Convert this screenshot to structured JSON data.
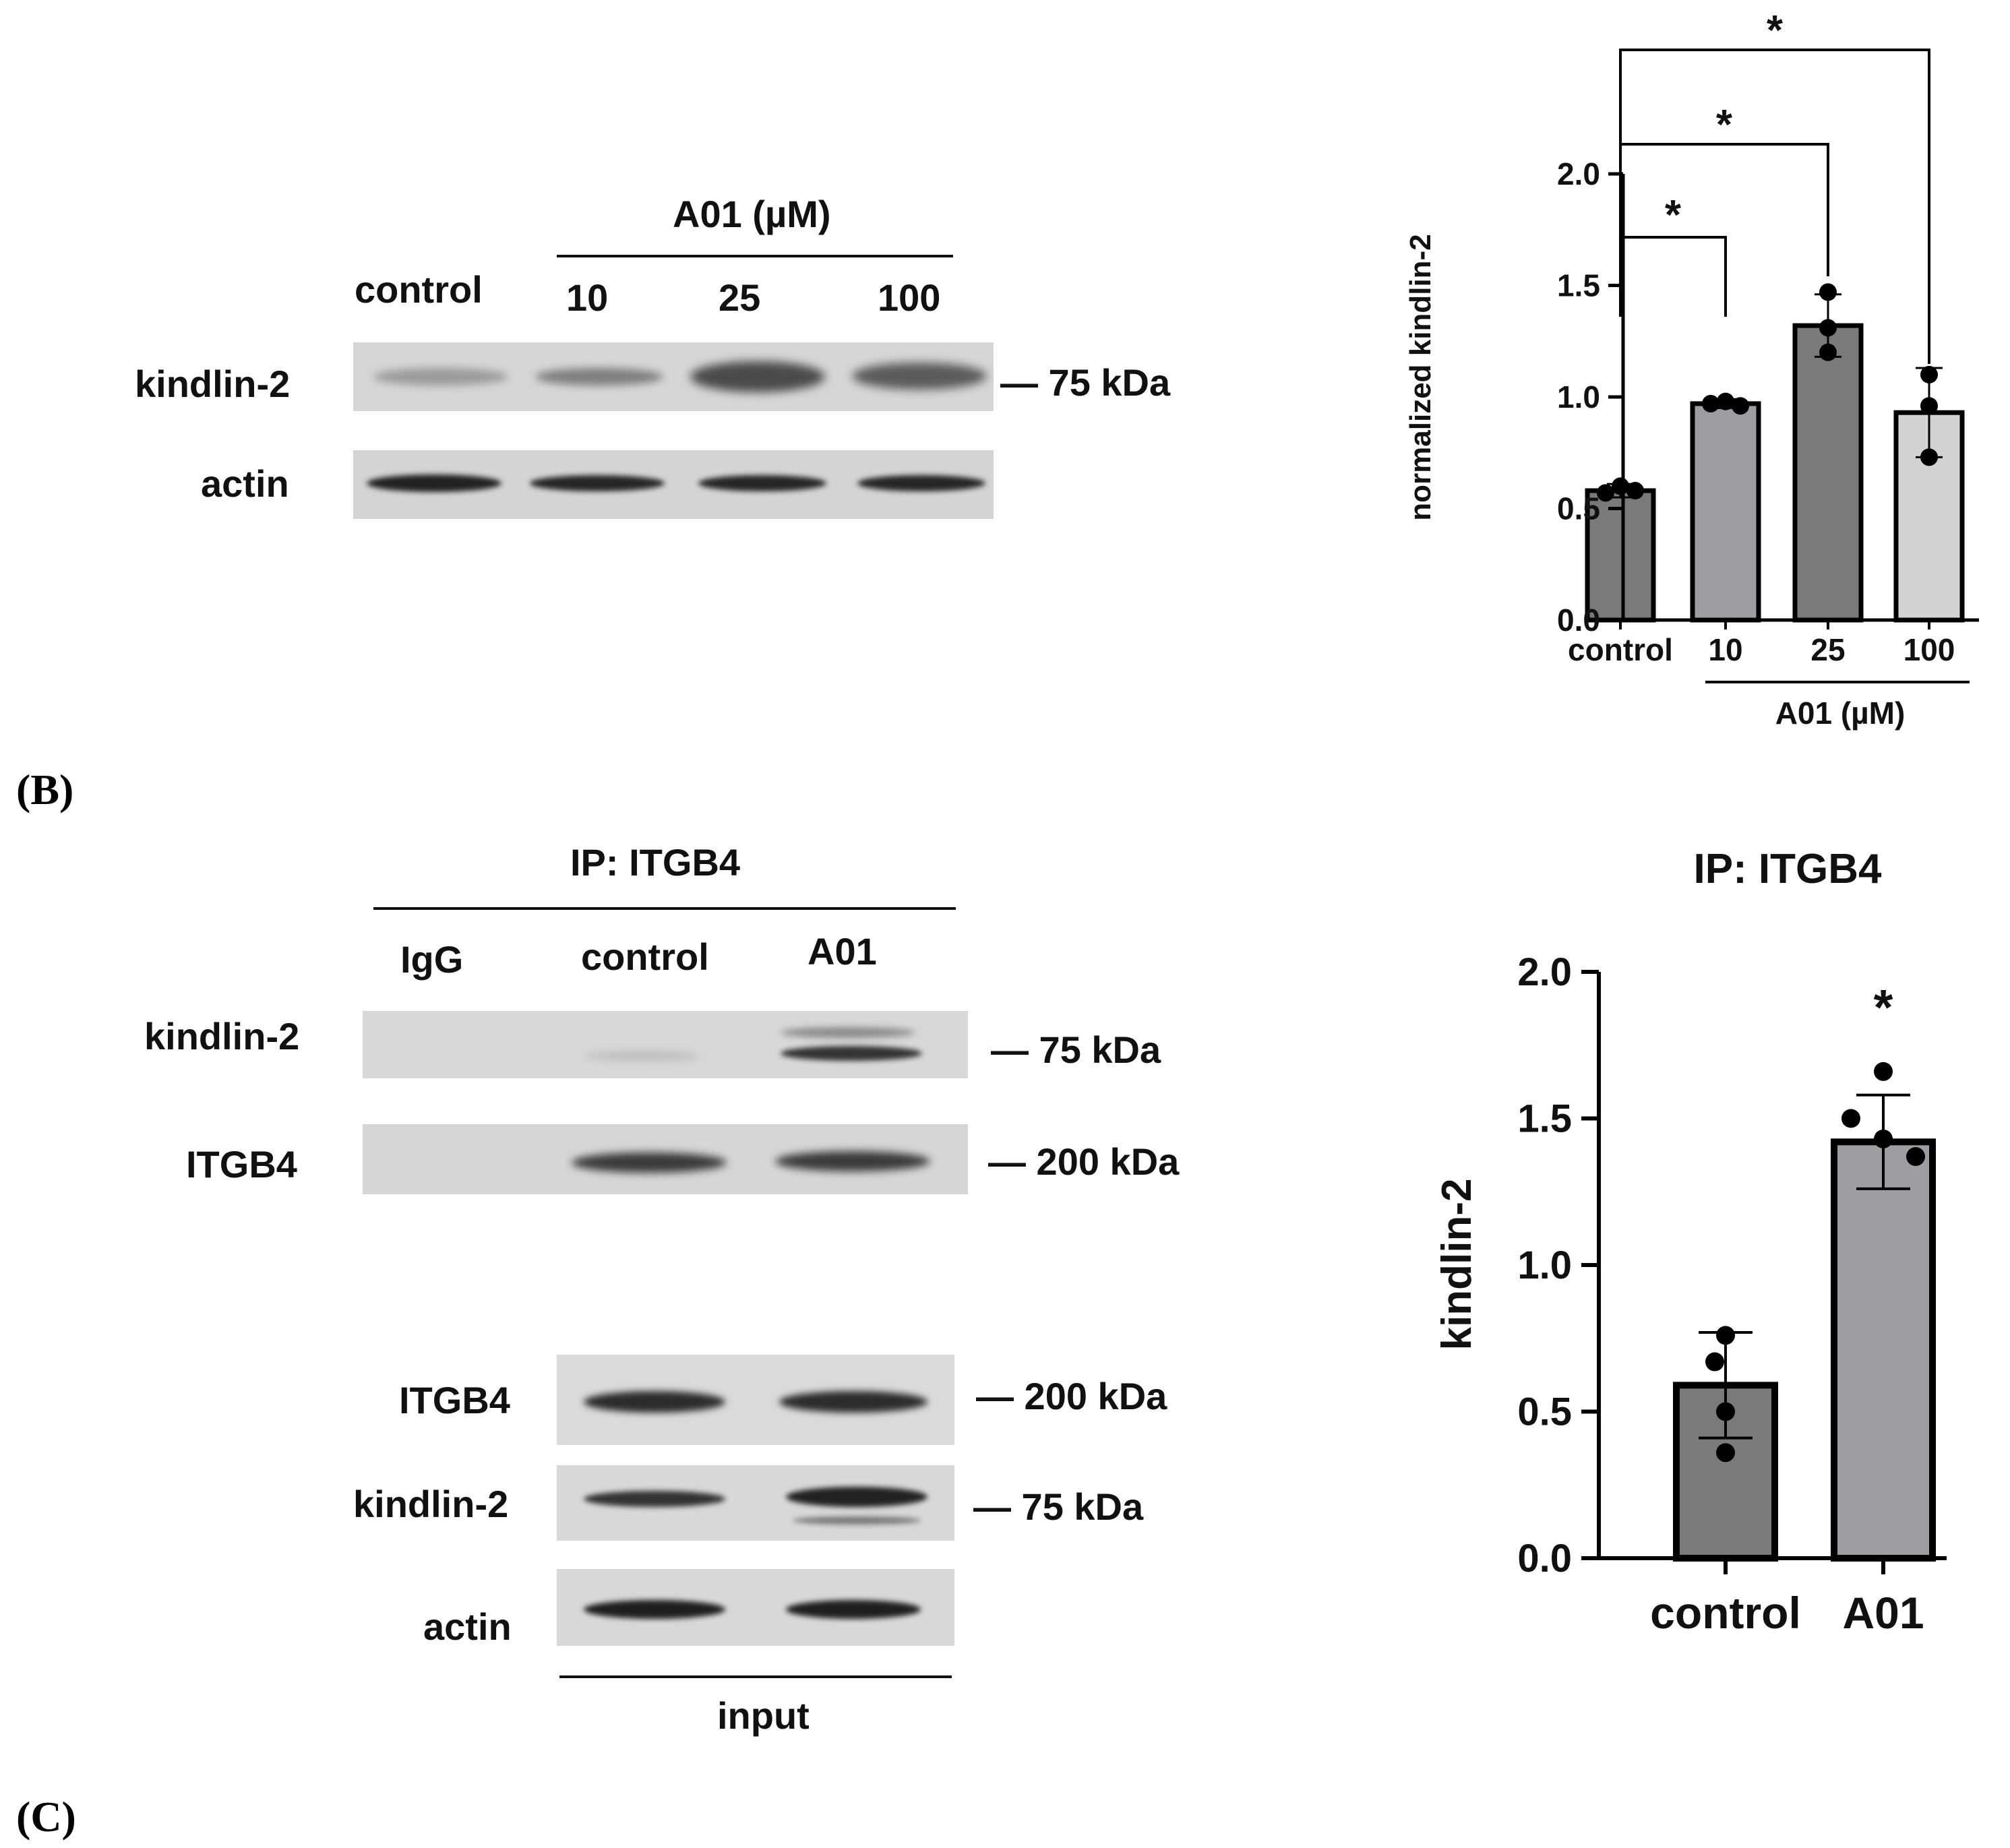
{
  "panel_b": {
    "letter": "(B)",
    "blot": {
      "treatment_header": "A01 (µM)",
      "lane_labels": [
        "control",
        "10",
        "25",
        "100"
      ],
      "row_labels": {
        "kindlin": "kindlin-2",
        "actin": "actin"
      },
      "marker": "— 75 kDa"
    }
  },
  "panel_c": {
    "letter": "(C)",
    "ip_blot": {
      "header": "IP: ITGB4",
      "lane_labels": [
        "IgG",
        "control",
        "A01"
      ],
      "row_labels": {
        "kindlin": "kindlin-2",
        "itgb4": "ITGB4"
      },
      "markers": {
        "kindlin": "— 75 kDa",
        "itgb4": "— 200 kDa"
      }
    },
    "input_blot": {
      "row_labels": {
        "itgb4": "ITGB4",
        "kindlin": "kindlin-2",
        "actin": "actin"
      },
      "markers": {
        "itgb4": "— 200 kDa",
        "kindlin": "— 75 kDa"
      },
      "footer": "input"
    }
  },
  "colors": {
    "dark_bar": "#7a7a7a",
    "mid_bar": "#9e9ea0",
    "light_bar": "#d3d3d3",
    "band": "#2a2a2a"
  },
  "chart_data": [
    {
      "type": "bar",
      "title": "",
      "ylabel": "normalized kindlin-2",
      "xlabel": "",
      "categories": [
        "control",
        "10",
        "25",
        "100"
      ],
      "group_label": "A01 (µM)",
      "values": [
        0.58,
        0.97,
        1.32,
        0.93
      ],
      "errors": [
        0.03,
        0.02,
        0.14,
        0.2
      ],
      "points": [
        [
          0.57,
          0.6,
          0.58
        ],
        [
          0.97,
          0.98,
          0.96
        ],
        [
          1.47,
          1.31,
          1.2
        ],
        [
          1.1,
          0.96,
          0.73
        ]
      ],
      "ylim": [
        0,
        2.0
      ],
      "yticks": [
        "0.0",
        "0.5",
        "1.0",
        "1.5",
        "2.0"
      ],
      "significance": [
        {
          "from": "control",
          "to": "10",
          "label": "*"
        },
        {
          "from": "control",
          "to": "25",
          "label": "*"
        },
        {
          "from": "control",
          "to": "100",
          "label": "*"
        }
      ],
      "grid": false,
      "legend": "none"
    },
    {
      "type": "bar",
      "title": "IP: ITGB4",
      "ylabel": "kindlin-2",
      "xlabel": "",
      "categories": [
        "control",
        "A01"
      ],
      "values": [
        0.59,
        1.42
      ],
      "errors": [
        0.18,
        0.16
      ],
      "points": [
        [
          0.76,
          0.67,
          0.5,
          0.36
        ],
        [
          1.66,
          1.5,
          1.43,
          1.37
        ]
      ],
      "ylim": [
        0,
        2.0
      ],
      "yticks": [
        "0.0",
        "0.5",
        "1.0",
        "1.5",
        "2.0"
      ],
      "significance": [
        {
          "on": "A01",
          "label": "*"
        }
      ],
      "grid": false,
      "legend": "none"
    }
  ]
}
